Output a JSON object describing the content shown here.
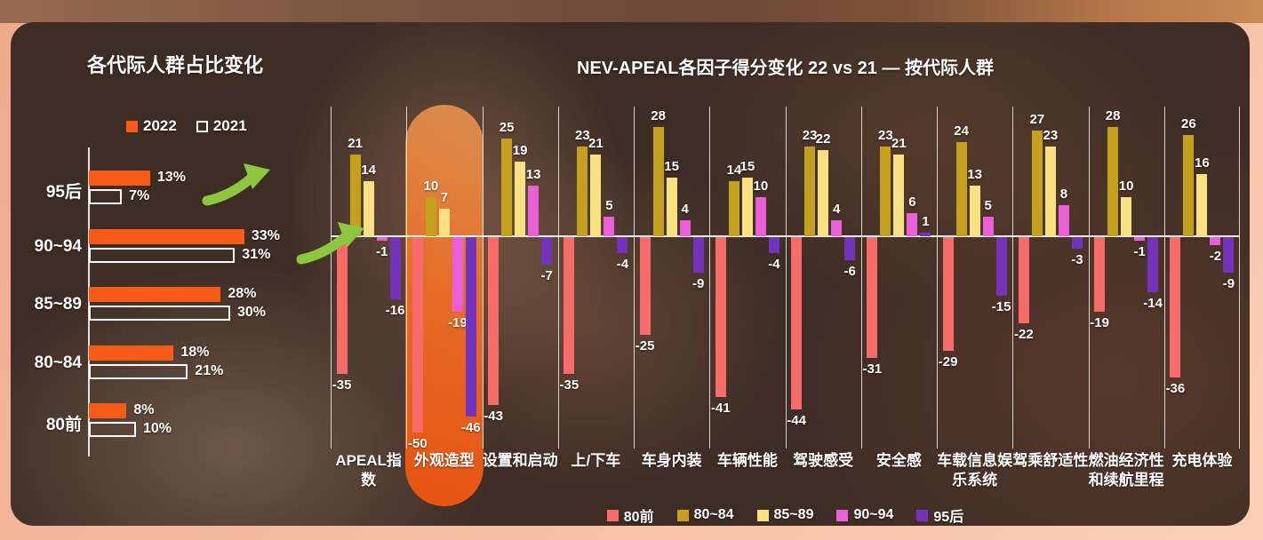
{
  "chart_data": [
    {
      "type": "bar",
      "orientation": "horizontal",
      "title": "各代际人群占比变化",
      "categories": [
        "95后",
        "90~94",
        "85~89",
        "80~84",
        "80前"
      ],
      "series": [
        {
          "name": "2022",
          "style": "filled",
          "color": "#F85A17",
          "values": [
            13,
            33,
            28,
            18,
            8
          ]
        },
        {
          "name": "2021",
          "style": "outline",
          "color": "#FFFFFF",
          "values": [
            7,
            31,
            30,
            21,
            10
          ]
        }
      ],
      "value_suffix": "%",
      "xlim": [
        0,
        35
      ],
      "legend_position": "top",
      "arrow_rows": [
        0,
        1
      ],
      "arrow_color": "#8DC63F",
      "annotation": "green up-trend arrows on 95后 and 90~94 rows"
    },
    {
      "type": "bar",
      "orientation": "vertical-grouped",
      "title": "NEV-APEAL各因子得分变化 22 vs 21 — 按代际人群",
      "categories": [
        "APEAL指数",
        "外观造型",
        "设置和启动",
        "上/下车",
        "车身内装",
        "车辆性能",
        "驾驶感受",
        "安全感",
        "车载信息娱乐系统",
        "驾乘舒适性",
        "燃油经济性和续航里程",
        "充电体验"
      ],
      "category_lines": [
        [
          "APEAL指",
          "数"
        ],
        [
          "外观造型"
        ],
        [
          "设置和启动"
        ],
        [
          "上/下车"
        ],
        [
          "车身内装"
        ],
        [
          "车辆性能"
        ],
        [
          "驾驶感受"
        ],
        [
          "安全感"
        ],
        [
          "车载信息娱",
          "乐系统"
        ],
        [
          "驾乘舒适性"
        ],
        [
          "燃油经济性",
          "和续航里程"
        ],
        [
          "充电体验"
        ]
      ],
      "highlighted_category": "外观造型",
      "highlight_color": "#EE5410",
      "ylim": [
        -55,
        32
      ],
      "gridlines": "vertical separators between groups, white zero baseline",
      "legend_position": "bottom",
      "series": [
        {
          "name": "80前",
          "color": "#F76B6B",
          "values": [
            -35,
            -50,
            -43,
            -35,
            -25,
            -41,
            -44,
            -31,
            -29,
            -22,
            -19,
            -36
          ]
        },
        {
          "name": "80~84",
          "color": "#C3A01E",
          "values": [
            21,
            10,
            25,
            23,
            28,
            14,
            23,
            23,
            24,
            27,
            28,
            26
          ]
        },
        {
          "name": "85~89",
          "color": "#F8E183",
          "values": [
            14,
            7,
            19,
            21,
            15,
            15,
            22,
            21,
            13,
            23,
            10,
            16
          ]
        },
        {
          "name": "90~94",
          "color": "#E960D6",
          "values": [
            -1,
            -19,
            13,
            5,
            4,
            10,
            4,
            6,
            5,
            8,
            -1,
            -2
          ]
        },
        {
          "name": "95后",
          "color": "#7433BB",
          "values": [
            -16,
            -46,
            -7,
            -4,
            -9,
            -4,
            -6,
            1,
            -15,
            -3,
            -14,
            -9
          ]
        }
      ]
    }
  ]
}
